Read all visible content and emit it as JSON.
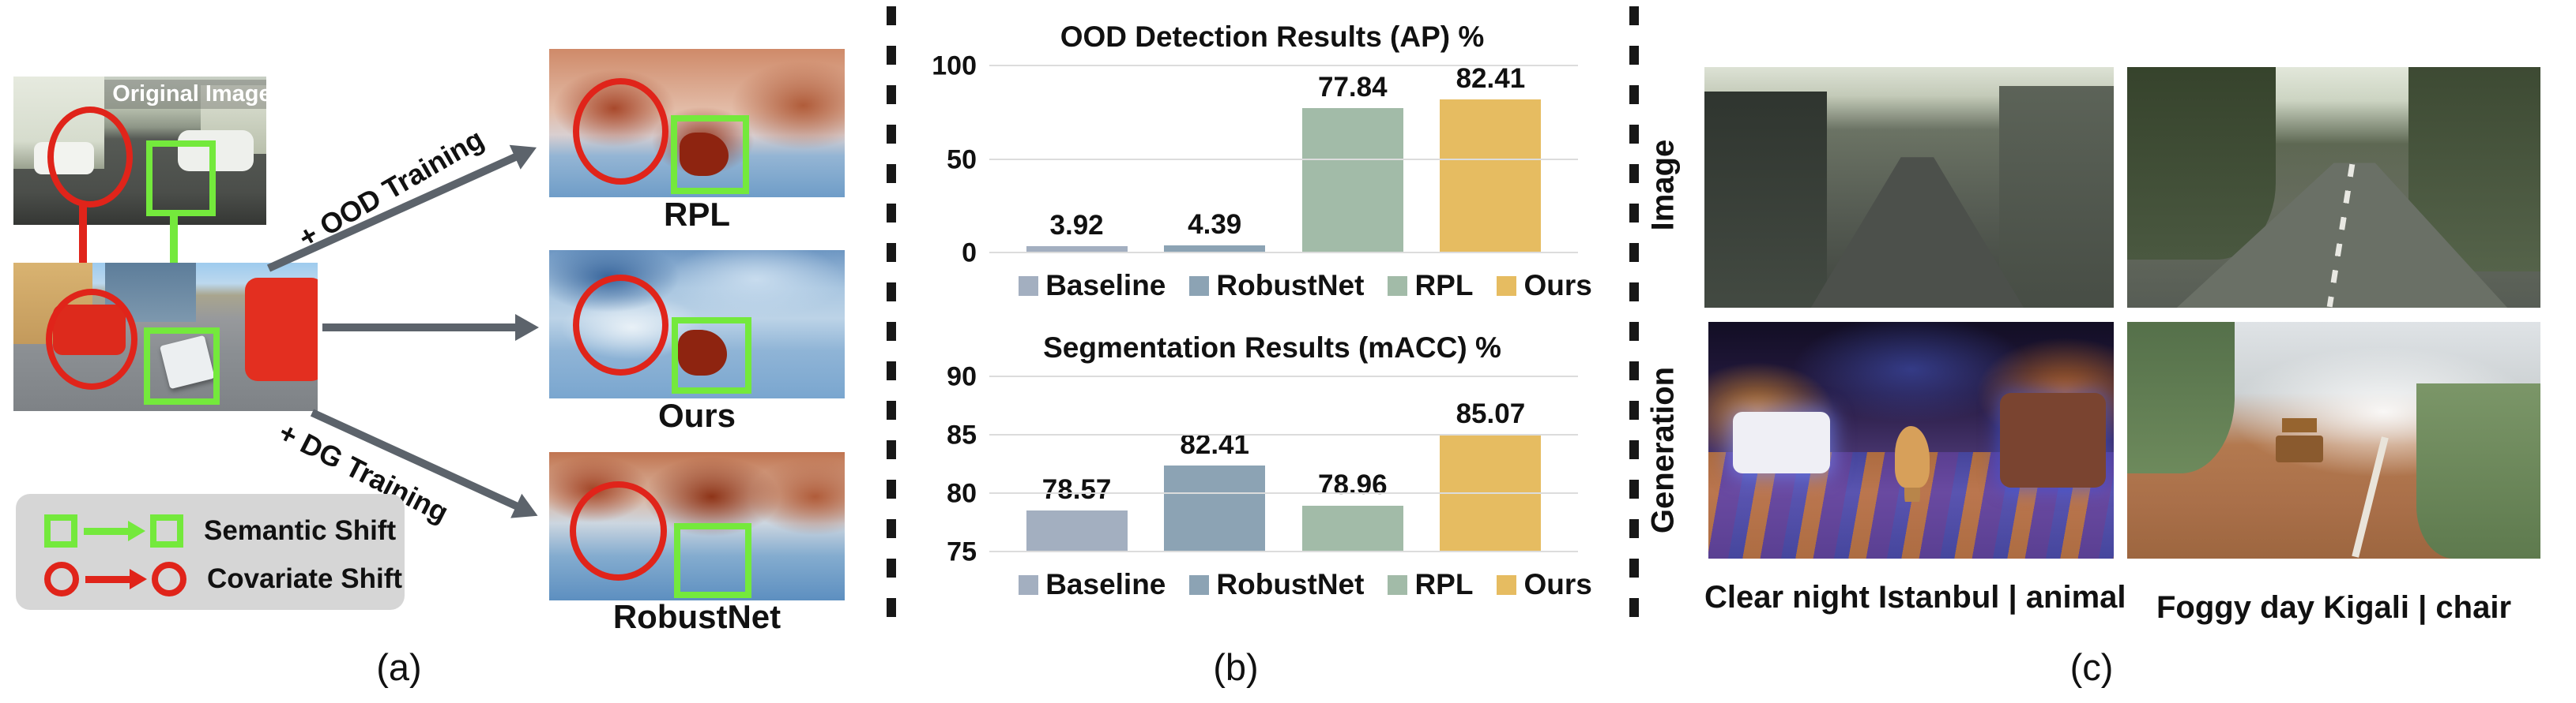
{
  "panel_a": {
    "panel_label": "(a)",
    "original_image_label": "Original Image",
    "ood_arrow_label": "+ OOD Training",
    "dg_arrow_label": "+ DG Training",
    "heatmaps": [
      {
        "label": "RPL"
      },
      {
        "label": "Ours"
      },
      {
        "label": "RobustNet"
      }
    ],
    "legend": {
      "semantic_label": "Semantic Shift",
      "covariate_label": "Covariate Shift"
    }
  },
  "panel_b": {
    "panel_label": "(b)"
  },
  "chart_data": [
    {
      "type": "bar",
      "title": "OOD Detection Results (AP) %",
      "categories": [
        "Baseline",
        "RobustNet",
        "RPL",
        "Ours"
      ],
      "values": [
        3.92,
        4.39,
        77.84,
        82.41
      ],
      "value_labels": [
        "3.92",
        "4.39",
        "77.84",
        "82.41"
      ],
      "colors": [
        "#a3afc0",
        "#8ca3b4",
        "#a2bba8",
        "#e6bc61"
      ],
      "ylim": [
        0,
        100
      ],
      "yticks": [
        0,
        50,
        100
      ],
      "grid": true,
      "legend_position": "bottom"
    },
    {
      "type": "bar",
      "title": "Segmentation Results (mACC) %",
      "categories": [
        "Baseline",
        "RobustNet",
        "RPL",
        "Ours"
      ],
      "values": [
        78.57,
        82.41,
        78.96,
        85.07
      ],
      "value_labels": [
        "78.57",
        "82.41",
        "78.96",
        "85.07"
      ],
      "colors": [
        "#a3afc0",
        "#8ca3b4",
        "#a2bba8",
        "#e6bc61"
      ],
      "ylim": [
        75,
        90
      ],
      "yticks": [
        75,
        80,
        85,
        90
      ],
      "grid": true,
      "legend_position": "bottom"
    }
  ],
  "panel_c": {
    "panel_label": "(c)",
    "row_labels": [
      "Image",
      "Generation"
    ],
    "captions": [
      "Clear night Istanbul | animal",
      "Foggy day Kigali | chair"
    ]
  },
  "colors": {
    "annotation_red": "#e0241a",
    "annotation_green": "#74e93c",
    "arrow_gray": "#5c636b",
    "baseline_bar": "#a3afc0",
    "robustnet_bar": "#8ca3b4",
    "rpl_bar": "#a2bba8",
    "ours_bar": "#e6bc61"
  }
}
